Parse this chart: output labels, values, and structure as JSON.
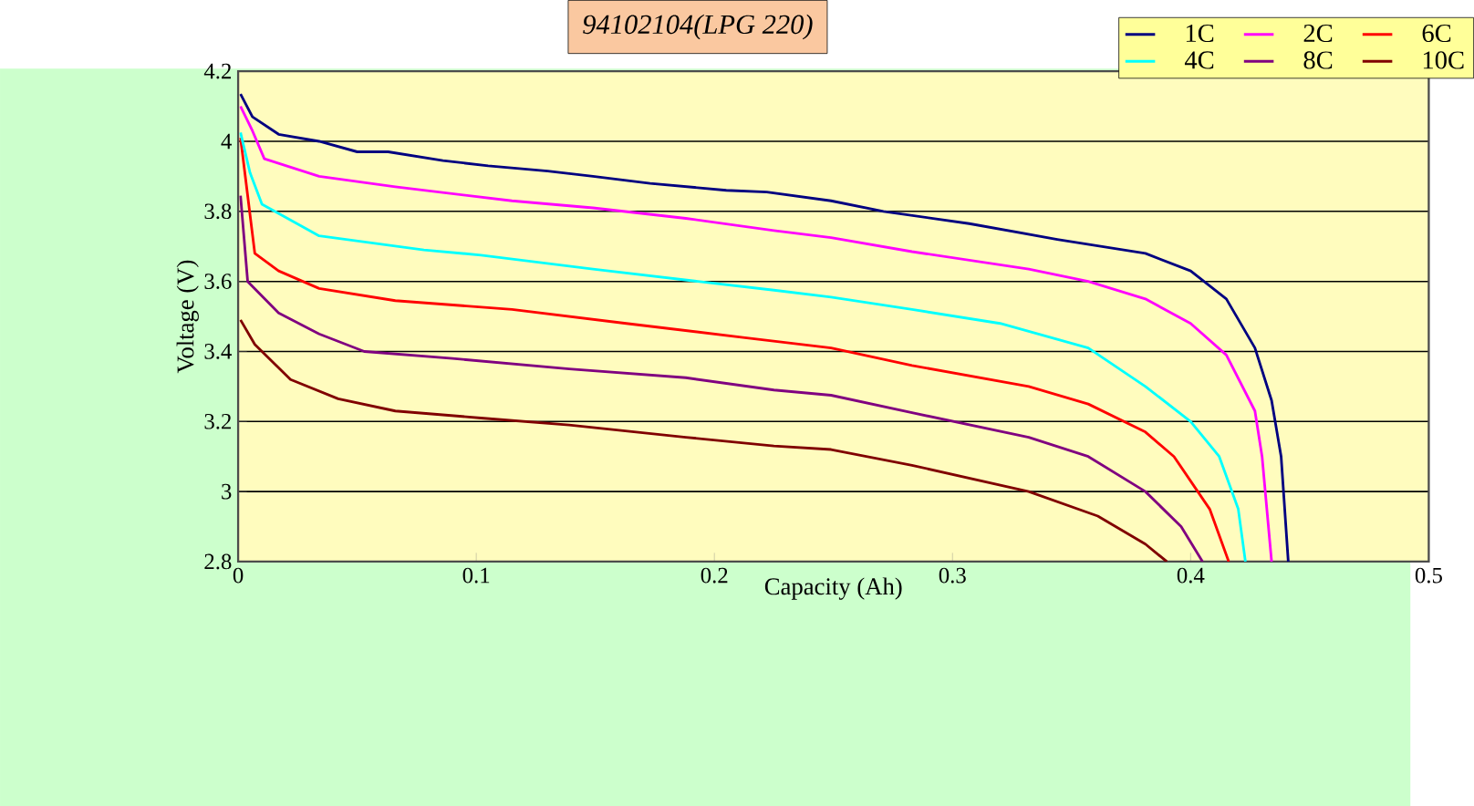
{
  "chart_data": {
    "type": "line",
    "title": "*94102104(LPG 220)*",
    "xlabel": "Capacity (Ah)",
    "ylabel": "Voltage (V)",
    "xlim": [
      0,
      0.5
    ],
    "xticks": [
      0,
      0.1,
      0.2,
      0.3,
      0.4,
      0.5
    ],
    "ylim": [
      2.8,
      4.2
    ],
    "yticks": [
      2.8,
      3,
      3.2,
      3.4,
      3.6,
      3.8,
      4,
      4.2
    ],
    "grid": "y",
    "legend": "top right",
    "line_style": "solid",
    "marker": "none",
    "series": [
      {
        "name": "1C",
        "color": "#000080",
        "x": [
          0.001,
          0.006,
          0.017,
          0.034,
          0.05,
          0.063,
          0.086,
          0.105,
          0.13,
          0.149,
          0.173,
          0.205,
          0.222,
          0.249,
          0.271,
          0.307,
          0.344,
          0.381,
          0.4,
          0.415,
          0.427,
          0.434,
          0.438,
          0.441
        ],
        "values": [
          4.135,
          4.07,
          4.02,
          4.0,
          3.97,
          3.97,
          3.945,
          3.93,
          3.915,
          3.9,
          3.88,
          3.86,
          3.855,
          3.83,
          3.8,
          3.765,
          3.72,
          3.68,
          3.63,
          3.55,
          3.41,
          3.26,
          3.1,
          2.8
        ]
      },
      {
        "name": "2C",
        "color": "#ff00ff",
        "x": [
          0.001,
          0.006,
          0.011,
          0.034,
          0.066,
          0.115,
          0.149,
          0.188,
          0.225,
          0.249,
          0.283,
          0.332,
          0.357,
          0.381,
          0.4,
          0.415,
          0.427,
          0.43,
          0.434
        ],
        "values": [
          4.1,
          4.03,
          3.95,
          3.9,
          3.87,
          3.83,
          3.81,
          3.78,
          3.745,
          3.725,
          3.685,
          3.635,
          3.6,
          3.55,
          3.48,
          3.39,
          3.23,
          3.1,
          2.8
        ]
      },
      {
        "name": "6C",
        "color": "#ff0000",
        "x": [
          0.001,
          0.004,
          0.007,
          0.017,
          0.034,
          0.066,
          0.115,
          0.163,
          0.212,
          0.249,
          0.283,
          0.332,
          0.357,
          0.381,
          0.393,
          0.408,
          0.416
        ],
        "values": [
          4.01,
          3.845,
          3.68,
          3.63,
          3.58,
          3.545,
          3.52,
          3.48,
          3.44,
          3.41,
          3.36,
          3.3,
          3.25,
          3.17,
          3.1,
          2.95,
          2.8
        ]
      },
      {
        "name": "4C",
        "color": "#00ffff",
        "x": [
          0.001,
          0.005,
          0.01,
          0.034,
          0.078,
          0.102,
          0.149,
          0.193,
          0.225,
          0.249,
          0.283,
          0.32,
          0.357,
          0.381,
          0.4,
          0.412,
          0.42,
          0.423
        ],
        "values": [
          4.025,
          3.91,
          3.82,
          3.73,
          3.69,
          3.675,
          3.635,
          3.6,
          3.575,
          3.555,
          3.52,
          3.48,
          3.41,
          3.3,
          3.2,
          3.1,
          2.95,
          2.8
        ]
      },
      {
        "name": "8C",
        "color": "#800080",
        "x": [
          0.001,
          0.004,
          0.017,
          0.034,
          0.053,
          0.09,
          0.139,
          0.188,
          0.225,
          0.249,
          0.283,
          0.332,
          0.357,
          0.381,
          0.396,
          0.405
        ],
        "values": [
          3.845,
          3.6,
          3.51,
          3.45,
          3.4,
          3.38,
          3.35,
          3.325,
          3.29,
          3.275,
          3.225,
          3.155,
          3.1,
          3.0,
          2.9,
          2.8
        ]
      },
      {
        "name": "10C",
        "color": "#800000",
        "x": [
          0.001,
          0.007,
          0.022,
          0.042,
          0.066,
          0.102,
          0.139,
          0.188,
          0.225,
          0.249,
          0.283,
          0.332,
          0.361,
          0.381,
          0.39
        ],
        "values": [
          3.49,
          3.42,
          3.32,
          3.265,
          3.23,
          3.21,
          3.19,
          3.155,
          3.13,
          3.12,
          3.075,
          3.0,
          2.93,
          2.85,
          2.8
        ]
      }
    ]
  }
}
